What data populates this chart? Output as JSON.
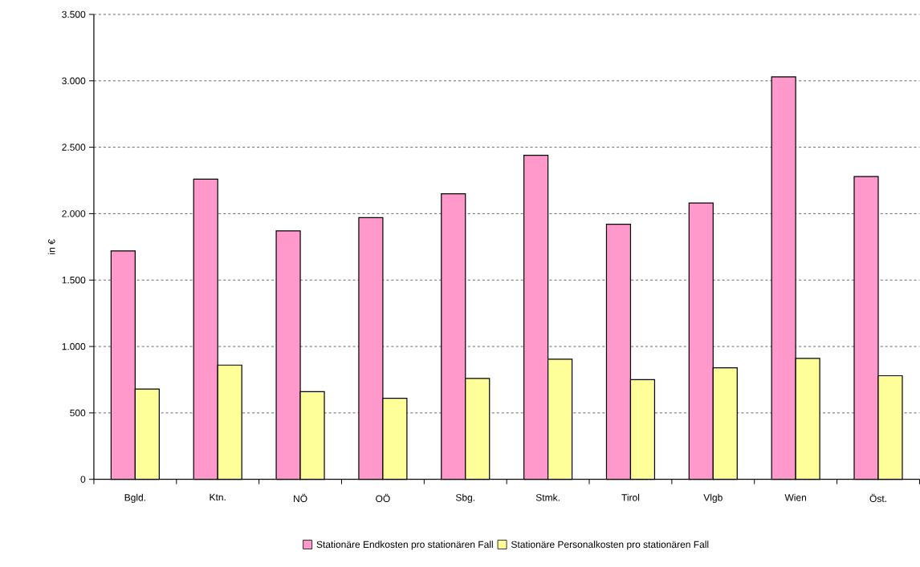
{
  "chart_data": {
    "type": "bar",
    "ylabel": "in €",
    "categories": [
      "Bgld.",
      "Ktn.",
      "NÖ",
      "OÖ",
      "Sbg.",
      "Stmk.",
      "Tirol",
      "Vlgb",
      "Wien",
      "Öst."
    ],
    "series": [
      {
        "name": "Stationäre Endkosten pro stationären Fall",
        "color": "#ff99cc",
        "values": [
          1720,
          2260,
          1870,
          1970,
          2150,
          2440,
          1920,
          2080,
          3030,
          2280
        ]
      },
      {
        "name": "Stationäre Personalkosten pro stationären Fall",
        "color": "#ffff99",
        "values": [
          680,
          860,
          660,
          610,
          760,
          905,
          750,
          840,
          910,
          780
        ]
      }
    ],
    "ylim": [
      0,
      3500
    ],
    "yticks": [
      0,
      500,
      {
        "value": 1000,
        "label": "1.000"
      },
      {
        "value": 1500,
        "label": "1.500"
      },
      {
        "value": 2000,
        "label": "2.000"
      },
      {
        "value": 2500,
        "label": "2.500"
      },
      {
        "value": 3000,
        "label": "3.000"
      },
      {
        "value": 3500,
        "label": "3.500"
      }
    ],
    "grid": "y",
    "legend": "bottom"
  }
}
